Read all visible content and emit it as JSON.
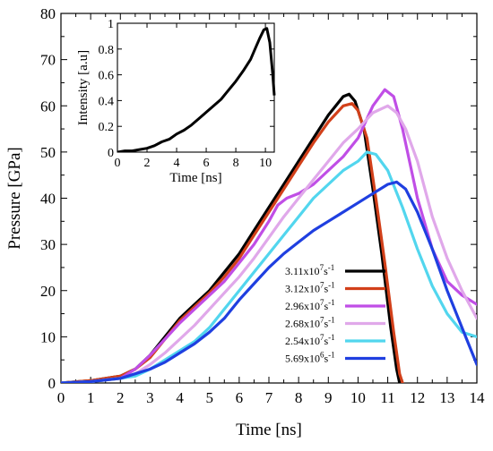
{
  "chart_data": [
    {
      "type": "line",
      "title": "",
      "xlabel": "Time [ns]",
      "ylabel": "Pressure [GPa]",
      "xlim": [
        0,
        14
      ],
      "ylim": [
        0,
        80
      ],
      "xticks": [
        0,
        1,
        2,
        3,
        4,
        5,
        6,
        7,
        8,
        9,
        10,
        11,
        12,
        13,
        14
      ],
      "yticks": [
        0,
        10,
        20,
        30,
        40,
        50,
        60,
        70,
        80
      ],
      "grid": false,
      "legend": "bottom-right",
      "series": [
        {
          "name": "3.11x10⁷s⁻¹",
          "label_base": "3.11x10",
          "label_exp": "7",
          "label_unit": "s",
          "label_unit_exp": "-1",
          "color": "#000000",
          "x": [
            0,
            1,
            2,
            2.5,
            3,
            3.5,
            4,
            4.5,
            5,
            5.5,
            6,
            6.5,
            7,
            7.5,
            8,
            8.5,
            9,
            9.5,
            9.7,
            9.9,
            10.2,
            10.5,
            10.8,
            11.1,
            11.3,
            11.4
          ],
          "y": [
            0,
            0.5,
            1.5,
            3,
            6,
            10,
            14,
            17,
            20,
            24,
            28,
            33,
            38,
            43,
            48,
            53,
            58,
            62,
            62.5,
            61,
            55,
            42,
            28,
            12,
            3,
            0
          ]
        },
        {
          "name": "3.12x10⁷s⁻¹",
          "label_base": "3.12x10",
          "label_exp": "7",
          "label_unit": "s",
          "label_unit_exp": "-1",
          "color": "#d2401a",
          "x": [
            0,
            1,
            2,
            2.5,
            3,
            3.5,
            4,
            4.5,
            5,
            5.5,
            6,
            6.5,
            7,
            7.5,
            8,
            8.5,
            9,
            9.5,
            9.8,
            10.0,
            10.3,
            10.6,
            10.9,
            11.2,
            11.4,
            11.5
          ],
          "y": [
            0,
            0.5,
            1.5,
            3,
            5.5,
            9.5,
            13.5,
            16.5,
            19.5,
            23,
            27,
            32,
            37,
            42,
            47,
            52,
            56.5,
            60,
            60.5,
            59,
            53,
            40,
            26,
            11,
            2,
            0
          ]
        },
        {
          "name": "2.96x10⁷s⁻¹",
          "label_base": "2.96x10",
          "label_exp": "7",
          "label_unit": "s",
          "label_unit_exp": "-1",
          "color": "#c04ee6",
          "x": [
            0,
            1,
            2,
            2.5,
            3,
            3.5,
            4,
            4.5,
            5,
            5.5,
            6,
            6.5,
            7,
            7.3,
            7.6,
            8,
            8.5,
            9,
            9.5,
            10,
            10.5,
            10.9,
            11.2,
            11.5,
            12,
            12.5,
            13,
            13.5,
            14
          ],
          "y": [
            0,
            0.3,
            1,
            3,
            6,
            9.5,
            13,
            16,
            19,
            22,
            26,
            30,
            35,
            38.5,
            40,
            41,
            43,
            46,
            49,
            53,
            60,
            63.5,
            62,
            55,
            40,
            29,
            22,
            19,
            17
          ]
        },
        {
          "name": "2.68x10⁷s⁻¹",
          "label_base": "2.68x10",
          "label_exp": "7",
          "label_unit": "s",
          "label_unit_exp": "-1",
          "color": "#e0a8ea",
          "x": [
            0,
            1,
            2,
            2.5,
            3,
            3.5,
            4,
            4.5,
            5,
            5.5,
            6,
            6.5,
            7,
            7.5,
            8,
            8.5,
            9,
            9.5,
            10,
            10.5,
            11,
            11.3,
            11.6,
            12,
            12.5,
            13,
            13.5,
            14
          ],
          "y": [
            0,
            0.3,
            1,
            2,
            4,
            6.5,
            9.5,
            12.5,
            16,
            19.5,
            23,
            27,
            31.5,
            36,
            40,
            44,
            48,
            52,
            55,
            58.5,
            60,
            58.5,
            55,
            48,
            36,
            27,
            20,
            14
          ]
        },
        {
          "name": "2.54x10⁷s⁻¹",
          "label_base": "2.54x10",
          "label_exp": "7",
          "label_unit": "s",
          "label_unit_exp": "-1",
          "color": "#52d6ee",
          "x": [
            0,
            1,
            2,
            2.5,
            3,
            3.5,
            4,
            4.5,
            5,
            5.5,
            6,
            6.5,
            7,
            7.5,
            8,
            8.5,
            9,
            9.5,
            10,
            10.3,
            10.6,
            11,
            11.5,
            12,
            12.5,
            13,
            13.5,
            14
          ],
          "y": [
            0,
            0.3,
            1,
            1.5,
            3,
            5,
            7,
            9,
            12,
            16,
            20,
            24,
            28,
            32,
            36,
            40,
            43,
            46,
            48,
            50,
            49.5,
            46,
            38,
            29,
            21,
            15,
            11,
            10
          ]
        },
        {
          "name": "5.69x10⁶s⁻¹",
          "label_base": "5.69x10",
          "label_exp": "6",
          "label_unit": "s",
          "label_unit_exp": "-1",
          "color": "#1f3fe0",
          "x": [
            0,
            1,
            2,
            2.5,
            3,
            3.5,
            4,
            4.5,
            5,
            5.5,
            6,
            6.5,
            7,
            7.5,
            8,
            8.5,
            9,
            9.5,
            10,
            10.5,
            11,
            11.3,
            11.6,
            12,
            12.5,
            13,
            13.5,
            14
          ],
          "y": [
            0,
            0.3,
            1,
            2,
            3,
            4.5,
            6.5,
            8.5,
            11,
            14,
            18,
            21.5,
            25,
            28,
            30.5,
            33,
            35,
            37,
            39,
            41,
            43,
            43.5,
            42,
            37,
            29,
            20,
            12,
            4
          ]
        }
      ]
    },
    {
      "type": "line",
      "title": "",
      "xlabel": "Time [ns]",
      "ylabel": "Intensity [a.u]",
      "xlim": [
        0,
        10.6
      ],
      "ylim": [
        0,
        1
      ],
      "xticks": [
        0,
        2,
        4,
        6,
        8,
        10
      ],
      "yticks": [
        0,
        0.2,
        0.4,
        0.6,
        0.8,
        1
      ],
      "ytick_labels": [
        "0",
        "0.2",
        "0.4",
        "0.6",
        "0.8",
        "1"
      ],
      "grid": false,
      "series": [
        {
          "color": "#000000",
          "x": [
            0,
            0.5,
            1,
            1.5,
            2,
            2.5,
            3,
            3.5,
            4,
            4.5,
            5,
            5.5,
            6,
            6.5,
            7,
            7.5,
            8,
            8.5,
            9,
            9.3,
            9.6,
            9.9,
            10.1,
            10.3,
            10.5,
            10.6
          ],
          "y": [
            0,
            0.01,
            0.01,
            0.02,
            0.03,
            0.05,
            0.08,
            0.1,
            0.14,
            0.17,
            0.21,
            0.26,
            0.31,
            0.36,
            0.41,
            0.48,
            0.55,
            0.63,
            0.72,
            0.8,
            0.88,
            0.95,
            0.96,
            0.85,
            0.6,
            0.44
          ]
        }
      ]
    }
  ]
}
